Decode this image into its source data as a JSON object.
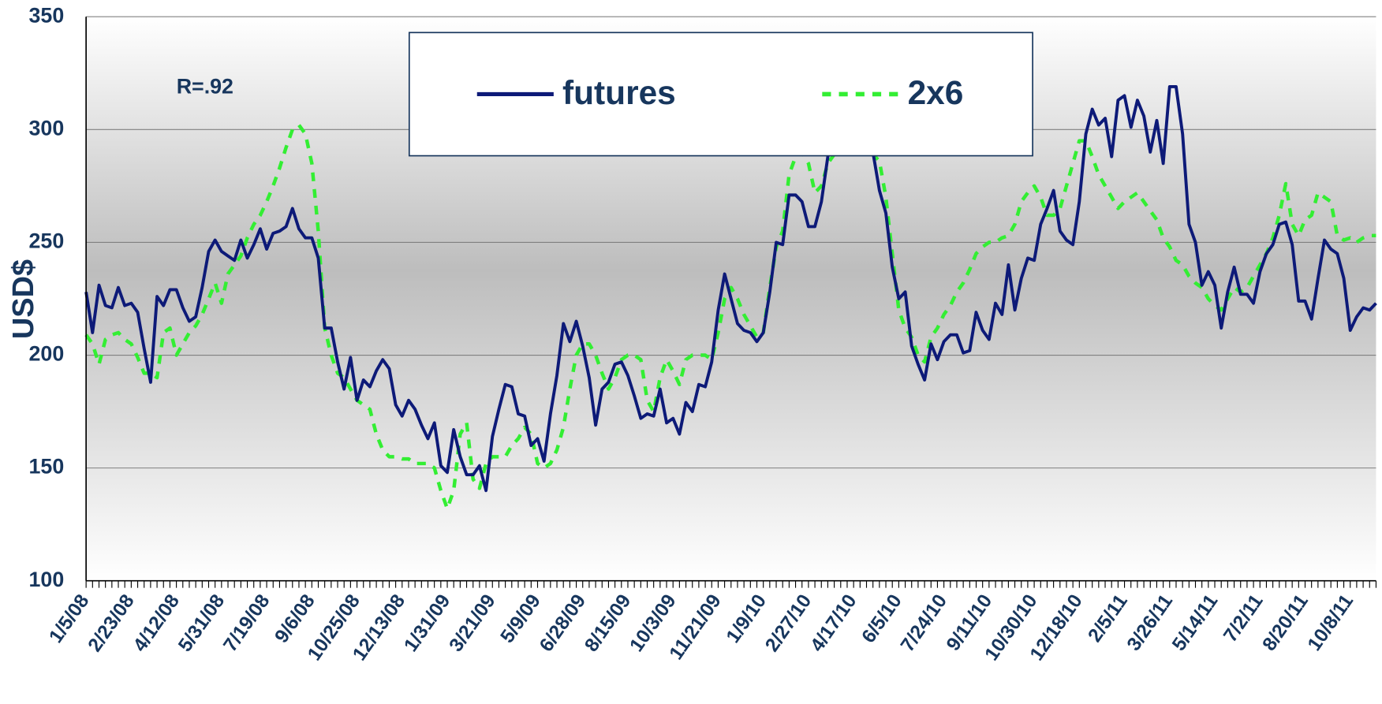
{
  "chart_data": {
    "type": "line",
    "y_label": "USD$",
    "annotation": "R=.92",
    "categories": [
      "1/5/08",
      null,
      null,
      null,
      null,
      null,
      null,
      "2/23/08",
      null,
      null,
      null,
      null,
      null,
      null,
      "4/12/08",
      null,
      null,
      null,
      null,
      null,
      null,
      "5/31/08",
      null,
      null,
      null,
      null,
      null,
      null,
      "7/19/08",
      null,
      null,
      null,
      null,
      null,
      null,
      "9/6/08",
      null,
      null,
      null,
      null,
      null,
      null,
      "10/25/08",
      null,
      null,
      null,
      null,
      null,
      null,
      "12/13/08",
      null,
      null,
      null,
      null,
      null,
      null,
      "1/31/09",
      null,
      null,
      null,
      null,
      null,
      null,
      "3/21/09",
      null,
      null,
      null,
      null,
      null,
      null,
      "5/9/09",
      null,
      null,
      null,
      null,
      null,
      null,
      "6/28/09",
      null,
      null,
      null,
      null,
      null,
      null,
      "8/15/09",
      null,
      null,
      null,
      null,
      null,
      null,
      "10/3/09",
      null,
      null,
      null,
      null,
      null,
      null,
      "11/21/09",
      null,
      null,
      null,
      null,
      null,
      null,
      "1/9/10",
      null,
      null,
      null,
      null,
      null,
      null,
      "2/27/10",
      null,
      null,
      null,
      null,
      null,
      null,
      "4/17/10",
      null,
      null,
      null,
      null,
      null,
      null,
      "6/5/10",
      null,
      null,
      null,
      null,
      null,
      null,
      "7/24/10",
      null,
      null,
      null,
      null,
      null,
      null,
      "9/11/10",
      null,
      null,
      null,
      null,
      null,
      null,
      "10/30/10",
      null,
      null,
      null,
      null,
      null,
      null,
      "12/18/10",
      null,
      null,
      null,
      null,
      null,
      null,
      "2/5/11",
      null,
      null,
      null,
      null,
      null,
      null,
      "3/26/11",
      null,
      null,
      null,
      null,
      null,
      null,
      "5/14/11",
      null,
      null,
      null,
      null,
      null,
      null,
      "7/2/11",
      null,
      null,
      null,
      null,
      null,
      null,
      "8/20/11",
      null,
      null,
      null,
      null,
      null,
      null,
      "10/8/11",
      null,
      null,
      null,
      null
    ],
    "series": [
      {
        "name": "futures",
        "color": "#0d1a78",
        "dash": false,
        "values": [
          228,
          210,
          231,
          222,
          221,
          230,
          222,
          223,
          219,
          203,
          188,
          226,
          222,
          229,
          229,
          221,
          215,
          217,
          230,
          246,
          251,
          246,
          244,
          242,
          251,
          243,
          249,
          256,
          247,
          254,
          255,
          257,
          265,
          256,
          252,
          252,
          243,
          212,
          212,
          197,
          185,
          199,
          180,
          189,
          186,
          193,
          198,
          194,
          178,
          173,
          180,
          176,
          169,
          163,
          170,
          151,
          148,
          167,
          155,
          147,
          147,
          151,
          140,
          164,
          176,
          187,
          186,
          174,
          173,
          160,
          163,
          153,
          174,
          191,
          214,
          206,
          215,
          204,
          190,
          169,
          185,
          188,
          196,
          197,
          191,
          182,
          172,
          174,
          173,
          185,
          170,
          172,
          165,
          179,
          175,
          187,
          186,
          197,
          220,
          236,
          225,
          214,
          211,
          210,
          206,
          210,
          228,
          250,
          249,
          271,
          271,
          268,
          257,
          257,
          268,
          288,
          298,
          300,
          289,
          300,
          295,
          290,
          290,
          273,
          263,
          239,
          225,
          228,
          204,
          196,
          189,
          205,
          198,
          206,
          209,
          209,
          201,
          202,
          219,
          211,
          207,
          223,
          218,
          240,
          220,
          234,
          243,
          242,
          258,
          265,
          273,
          255,
          251,
          249,
          268,
          298,
          309,
          302,
          305,
          288,
          313,
          315,
          301,
          313,
          306,
          290,
          304,
          285,
          319,
          319,
          298,
          258,
          250,
          231,
          237,
          231,
          212,
          228,
          239,
          227,
          227,
          223,
          237,
          245,
          249,
          258,
          259,
          249,
          224,
          224,
          216,
          234,
          251,
          247,
          245,
          234,
          211,
          217,
          221,
          220,
          223
        ]
      },
      {
        "name": "2x6",
        "color": "#33ee33",
        "dash": true,
        "values": [
          209,
          205,
          196,
          207,
          209,
          210,
          207,
          205,
          199,
          192,
          192,
          190,
          210,
          212,
          200,
          205,
          210,
          213,
          218,
          225,
          232,
          223,
          236,
          240,
          244,
          252,
          258,
          262,
          268,
          275,
          283,
          292,
          300,
          302,
          298,
          285,
          255,
          212,
          200,
          192,
          190,
          185,
          180,
          178,
          176,
          165,
          158,
          155,
          155,
          154,
          154,
          152,
          152,
          152,
          150,
          140,
          132,
          140,
          165,
          170,
          145,
          141,
          152,
          155,
          155,
          155,
          160,
          163,
          168,
          165,
          152,
          150,
          152,
          158,
          168,
          185,
          200,
          205,
          205,
          200,
          192,
          185,
          190,
          198,
          200,
          200,
          198,
          180,
          175,
          190,
          198,
          193,
          187,
          198,
          200,
          200,
          200,
          198,
          210,
          225,
          230,
          225,
          218,
          213,
          208,
          210,
          230,
          248,
          255,
          280,
          288,
          290,
          285,
          272,
          275,
          285,
          289,
          300,
          300,
          300,
          300,
          300,
          289,
          286,
          270,
          245,
          220,
          212,
          208,
          200,
          197,
          208,
          212,
          218,
          222,
          228,
          232,
          238,
          245,
          248,
          250,
          250,
          252,
          253,
          258,
          268,
          272,
          275,
          270,
          262,
          262,
          265,
          275,
          285,
          295,
          295,
          288,
          280,
          275,
          270,
          265,
          268,
          270,
          272,
          268,
          264,
          260,
          252,
          248,
          242,
          240,
          235,
          232,
          230,
          225,
          222,
          220,
          225,
          230,
          228,
          230,
          235,
          240,
          245,
          252,
          262,
          276,
          258,
          253,
          260,
          262,
          272,
          270,
          268,
          253,
          251,
          252,
          250,
          252,
          253,
          253
        ]
      }
    ],
    "ylim": [
      100,
      350
    ],
    "yticks": [
      100,
      150,
      200,
      250,
      300,
      350
    ],
    "grid": true
  }
}
